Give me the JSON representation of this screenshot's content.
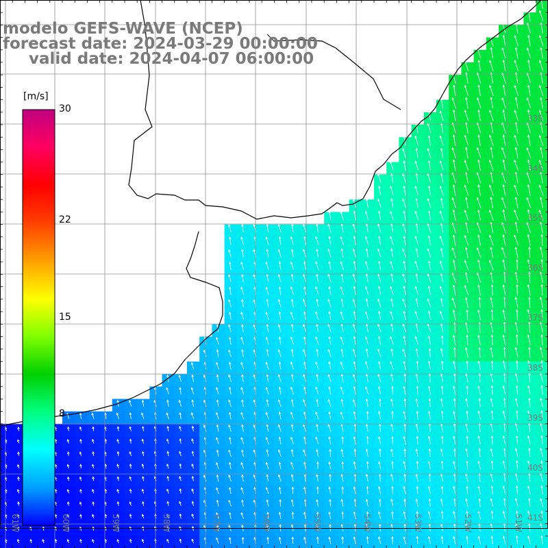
{
  "title": {
    "line1": "modelo GEFS-WAVE (NCEP)",
    "line2": "forecast date: 2024-03-29 00:00:00",
    "line3": "valid date: 2024-04-07 06:00:00"
  },
  "colorbar": {
    "unit": "[m/s]",
    "min": 0,
    "max": 30,
    "tick_labels": [
      "30",
      "22",
      "15",
      "8"
    ],
    "tick_values": [
      30,
      22,
      15,
      8
    ],
    "colors": [
      "#0000ff",
      "#00a0ff",
      "#00ffff",
      "#00ff80",
      "#00d000",
      "#80ff00",
      "#ffff00",
      "#ffa000",
      "#ff4000",
      "#ff0000",
      "#ff0060",
      "#c00080"
    ]
  },
  "map": {
    "field": "wind speed with direction arrows",
    "lon_labels": [
      "61W",
      "60W",
      "59W",
      "58W",
      "57W",
      "56W",
      "55W",
      "54W",
      "53W",
      "52W",
      "51W"
    ],
    "lat_labels": [
      "33S",
      "34S",
      "35S",
      "36S",
      "37S",
      "38S",
      "39S",
      "40S",
      "41S"
    ],
    "colors": {
      "land": "#ffffff",
      "coast": "#000000",
      "grid": "#808080",
      "arrow": "#ffffff"
    }
  }
}
